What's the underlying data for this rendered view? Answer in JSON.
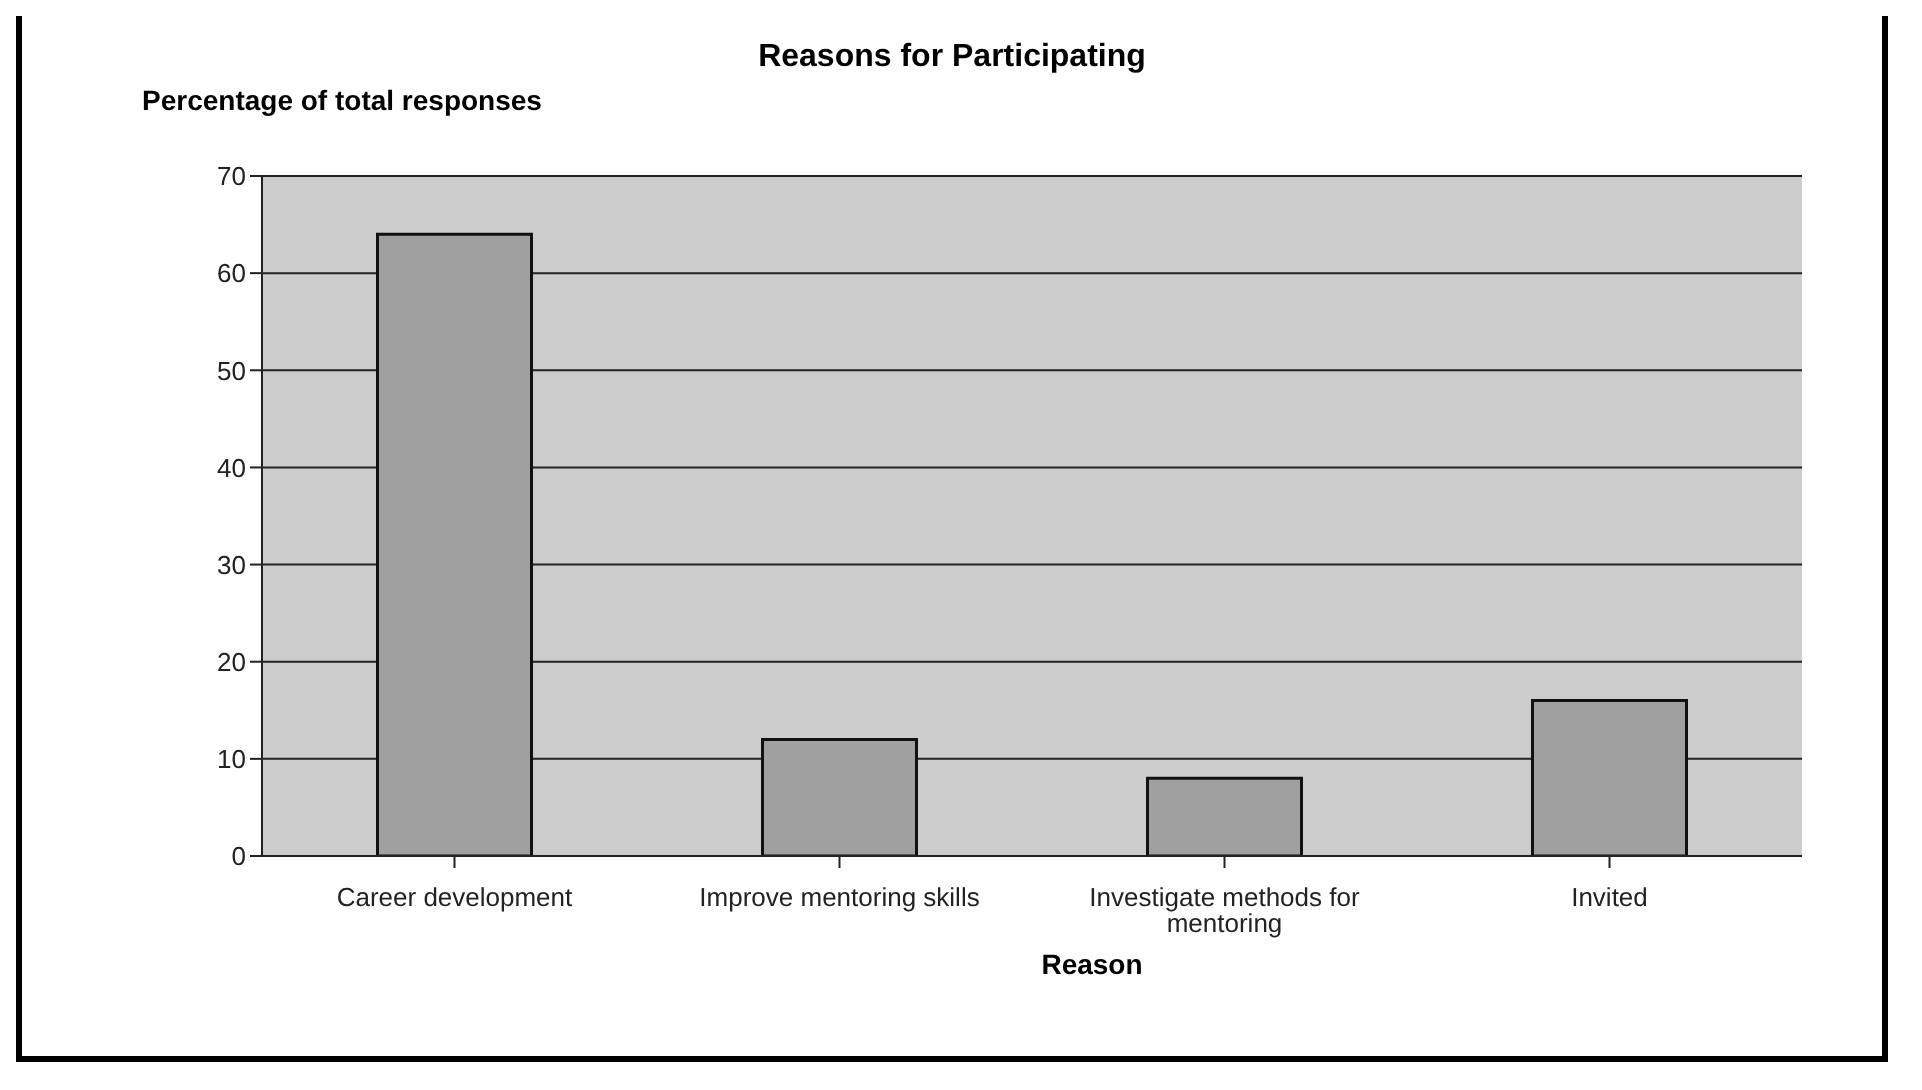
{
  "chart_data": {
    "type": "bar",
    "title": "Reasons for Participating",
    "xlabel": "Reason",
    "ylabel": "Percentage of total responses",
    "categories": [
      "Career development",
      "Improve mentoring skills",
      "Investigate methods for mentoring",
      "Invited"
    ],
    "values": [
      64,
      12,
      8,
      16
    ],
    "color": "#a0a0a0",
    "ylim": [
      0,
      70
    ],
    "yticks": [
      0,
      10,
      20,
      30,
      40,
      50,
      60,
      70
    ],
    "grid": "y",
    "legend": false
  }
}
